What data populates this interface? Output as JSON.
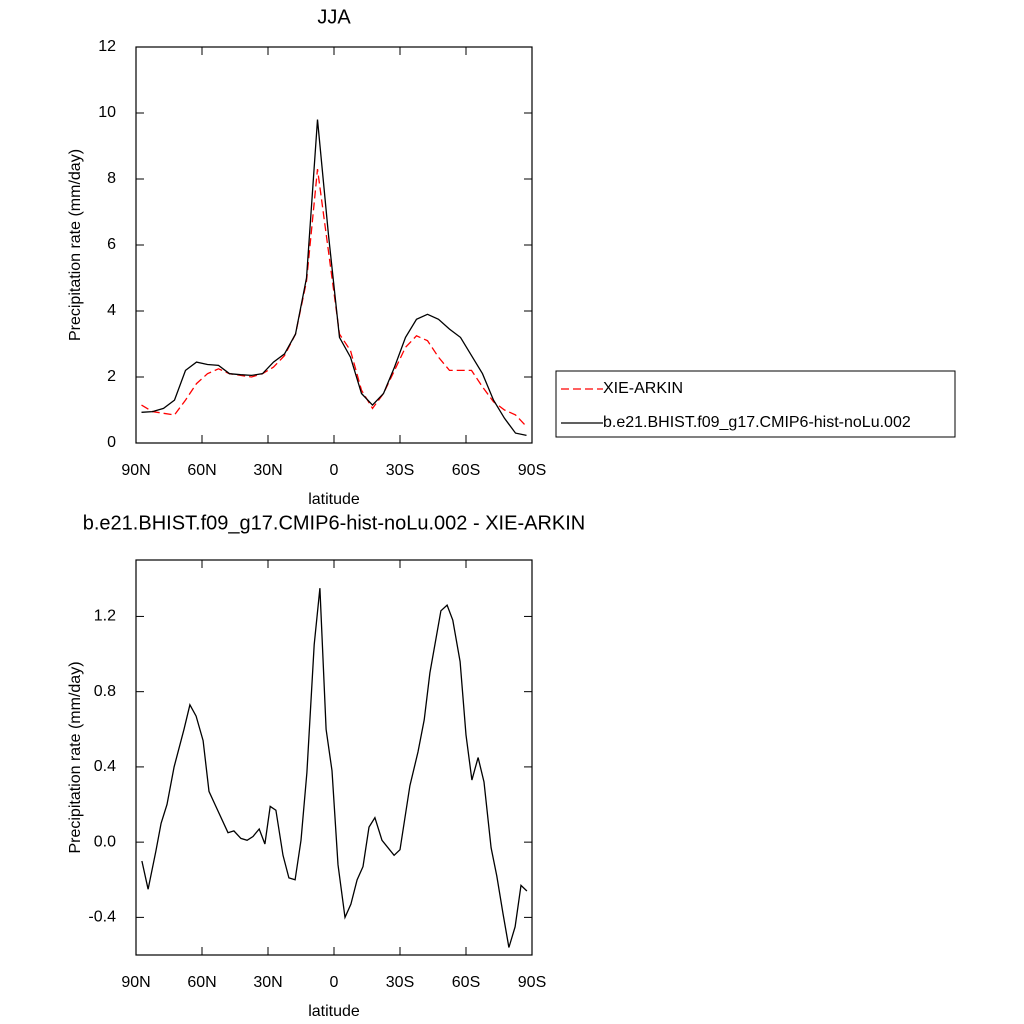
{
  "chart_data": [
    {
      "type": "line",
      "title": "JJA",
      "xlabel": "latitude",
      "ylabel": "Precipitation rate (mm/day)",
      "x": [
        87.5,
        82.5,
        77.5,
        72.5,
        67.5,
        62.5,
        57.5,
        52.5,
        47.5,
        42.5,
        37.5,
        32.5,
        27.5,
        22.5,
        17.5,
        12.5,
        7.5,
        2.5,
        -2.5,
        -7.5,
        -12.5,
        -17.5,
        -22.5,
        -27.5,
        -32.5,
        -37.5,
        -42.5,
        -47.5,
        -52.5,
        -57.5,
        -62.5,
        -67.5,
        -72.5,
        -77.5,
        -82.5,
        -87.5
      ],
      "series": [
        {
          "name": "XIE-ARKIN",
          "color": "#ff0000",
          "dash": true,
          "values": [
            1.15,
            0.95,
            0.9,
            0.85,
            1.3,
            1.8,
            2.1,
            2.25,
            2.1,
            2.05,
            2.0,
            2.1,
            2.3,
            2.65,
            3.3,
            4.9,
            8.3,
            5.8,
            3.3,
            2.8,
            1.6,
            1.05,
            1.5,
            2.2,
            2.9,
            3.25,
            3.1,
            2.6,
            2.2,
            2.2,
            2.2,
            1.7,
            1.25,
            1.0,
            0.85,
            0.5
          ]
        },
        {
          "name": "b.e21.BHIST.f09_g17.CMIP6-hist-noLu.002",
          "color": "#000000",
          "dash": false,
          "values": [
            0.93,
            0.95,
            1.05,
            1.3,
            2.2,
            2.45,
            2.38,
            2.35,
            2.1,
            2.07,
            2.05,
            2.1,
            2.45,
            2.7,
            3.3,
            5.0,
            9.8,
            6.3,
            3.2,
            2.6,
            1.5,
            1.15,
            1.5,
            2.3,
            3.2,
            3.75,
            3.9,
            3.75,
            3.45,
            3.2,
            2.65,
            2.1,
            1.3,
            0.75,
            0.3,
            0.23
          ]
        }
      ],
      "xlim": [
        90,
        -90
      ],
      "xticks": [
        {
          "value": 90,
          "label": "90N"
        },
        {
          "value": 60,
          "label": "60N"
        },
        {
          "value": 30,
          "label": "30N"
        },
        0,
        {
          "value": -30,
          "label": "30S"
        },
        {
          "value": -60,
          "label": "60S"
        },
        {
          "value": -90,
          "label": "90S"
        }
      ],
      "ylim": [
        0,
        12
      ],
      "yticks": [
        0,
        2,
        4,
        6,
        8,
        10,
        12
      ],
      "legend": "right"
    },
    {
      "type": "line",
      "title": "b.e21.BHIST.f09_g17.CMIP6-hist-noLu.002 - XIE-ARKIN",
      "xlabel": "latitude",
      "ylabel": "Precipitation rate (mm/day)",
      "x": [
        87.3,
        84.5,
        81,
        78.6,
        75.9,
        72.7,
        68.2,
        65.5,
        62.7,
        59.5,
        56.8,
        54.1,
        48.2,
        45.5,
        42.3,
        39.5,
        36.8,
        34,
        31.4,
        29,
        26.4,
        23.2,
        20.5,
        17.7,
        15,
        12.3,
        9,
        6.4,
        3.6,
        0.9,
        -1.8,
        -5,
        -7.7,
        -10.5,
        -13.2,
        -15.9,
        -18.6,
        -21.8,
        -27.3,
        -30,
        -34.5,
        -38.2,
        -41,
        -43.6,
        -48.6,
        -51.4,
        -54,
        -57.3,
        -60,
        -62.7,
        -65.5,
        -68.2,
        -71.4,
        -74,
        -76.8,
        -79.5,
        -82.3,
        -85,
        -87.7
      ],
      "series": [
        {
          "color": "#000000",
          "values": [
            -0.1,
            -0.25,
            -0.05,
            0.1,
            0.2,
            0.4,
            0.6,
            0.73,
            0.67,
            0.54,
            0.27,
            0.2,
            0.05,
            0.06,
            0.02,
            0.01,
            0.03,
            0.07,
            -0.01,
            0.19,
            0.17,
            -0.07,
            -0.19,
            -0.2,
            0.01,
            0.37,
            1.05,
            1.35,
            0.6,
            0.38,
            -0.12,
            -0.4,
            -0.33,
            -0.2,
            -0.13,
            0.08,
            0.13,
            0.01,
            -0.07,
            -0.04,
            0.3,
            0.48,
            0.65,
            0.9,
            1.23,
            1.26,
            1.18,
            0.96,
            0.57,
            0.33,
            0.45,
            0.32,
            -0.03,
            -0.18,
            -0.38,
            -0.56,
            -0.45,
            -0.23,
            -0.26
          ]
        }
      ],
      "xlim": [
        90,
        -90
      ],
      "xticks": [
        {
          "value": 90,
          "label": "90N"
        },
        {
          "value": 60,
          "label": "60N"
        },
        {
          "value": 30,
          "label": "30N"
        },
        0,
        {
          "value": -30,
          "label": "30S"
        },
        {
          "value": -60,
          "label": "60S"
        },
        {
          "value": -90,
          "label": "90S"
        }
      ],
      "ylim": [
        -0.6,
        1.5
      ],
      "yticks": [
        -0.4,
        {
          "value": 0,
          "label": "0.0"
        },
        0.4,
        0.8,
        1.2
      ]
    }
  ]
}
